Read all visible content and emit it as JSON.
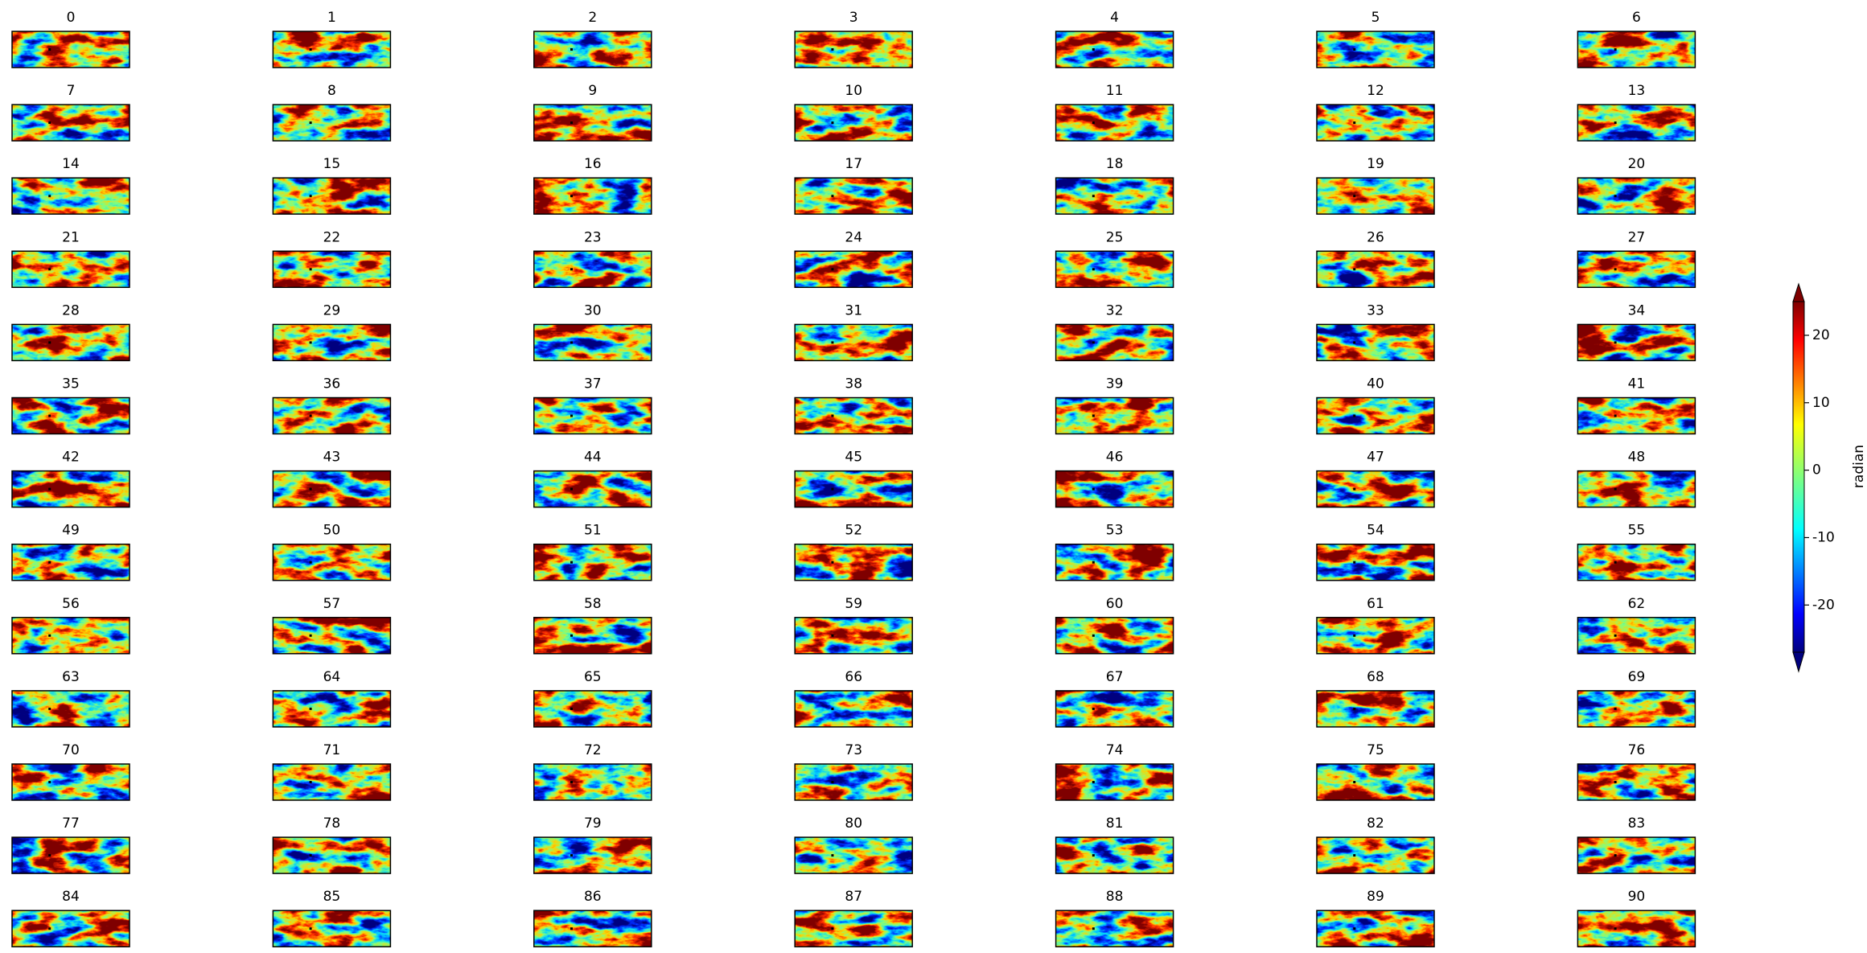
{
  "chart_data": {
    "type": "heatmap-grid",
    "titles": [
      0,
      1,
      2,
      3,
      4,
      5,
      6,
      7,
      8,
      9,
      10,
      11,
      12,
      13,
      14,
      15,
      16,
      17,
      18,
      19,
      20,
      21,
      22,
      23,
      24,
      25,
      26,
      27,
      28,
      29,
      30,
      31,
      32,
      33,
      34,
      35,
      36,
      37,
      38,
      39,
      40,
      41,
      42,
      43,
      44,
      45,
      46,
      47,
      48,
      49,
      50,
      51,
      52,
      53,
      54,
      55,
      56,
      57,
      58,
      59,
      60,
      61,
      62,
      63,
      64,
      65,
      66,
      67,
      68,
      69,
      70,
      71,
      72,
      73,
      74,
      75,
      76,
      77,
      78,
      79,
      80,
      81,
      82,
      83,
      84,
      85,
      86,
      87,
      88,
      89,
      90
    ],
    "columns": 7,
    "colormap": "jet",
    "colorbar": {
      "label": "radian",
      "lim": [
        -27,
        25
      ],
      "ticks": [
        -20,
        -10,
        0,
        10,
        20
      ],
      "extend": "both"
    }
  }
}
